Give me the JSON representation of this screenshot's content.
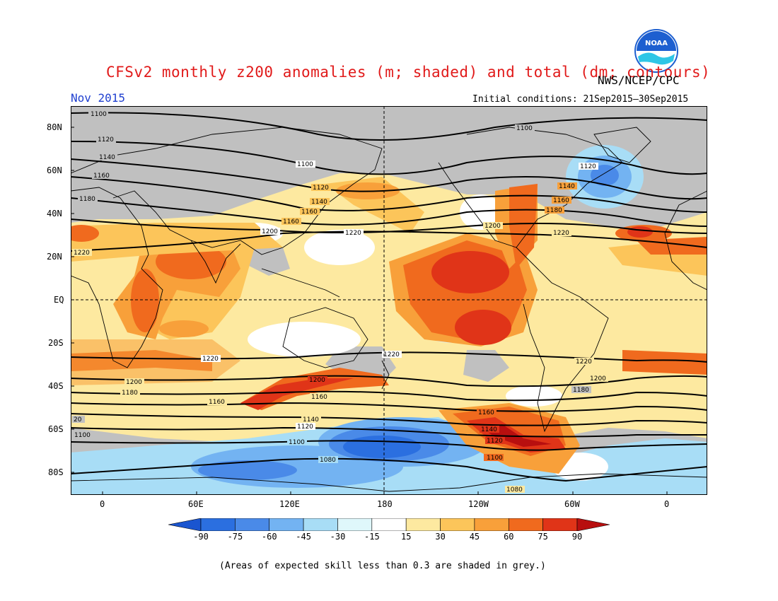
{
  "header": {
    "title": "CFSv2 monthly z200 anomalies (m; shaded) and total (dm; contours)",
    "org": "NWS/NCEP/CPC",
    "month": "Nov 2015",
    "initial_conditions": "Initial conditions: 21Sep2015–30Sep2015",
    "logo_text": "NOAA"
  },
  "map": {
    "lat_labels": [
      "80N",
      "60N",
      "40N",
      "20N",
      "EQ",
      "20S",
      "40S",
      "60S",
      "80S"
    ],
    "lon_labels": [
      "0",
      "60E",
      "120E",
      "180",
      "120W",
      "60W",
      "0"
    ],
    "contours": [
      {
        "value": 1080,
        "labels": [
          {
            "text": "1080"
          },
          {
            "text": "1080"
          }
        ]
      },
      {
        "value": 1100,
        "labels": [
          {
            "text": "1100"
          },
          {
            "text": "1100"
          },
          {
            "text": "1100"
          },
          {
            "text": "1100"
          },
          {
            "text": "1100"
          }
        ]
      },
      {
        "value": 1120,
        "labels": [
          {
            "text": "1120"
          },
          {
            "text": "1120"
          },
          {
            "text": "1120"
          },
          {
            "text": "1120"
          },
          {
            "text": "1120"
          }
        ]
      },
      {
        "value": 1140,
        "labels": [
          {
            "text": "1140"
          },
          {
            "text": "1140"
          },
          {
            "text": "1140"
          },
          {
            "text": "1140"
          }
        ]
      },
      {
        "value": 1160,
        "labels": [
          {
            "text": "1160"
          },
          {
            "text": "1160"
          },
          {
            "text": "1160"
          },
          {
            "text": "1160"
          },
          {
            "text": "1160"
          },
          {
            "text": "1160"
          },
          {
            "text": "1160"
          }
        ]
      },
      {
        "value": 1180,
        "labels": [
          {
            "text": "1180"
          },
          {
            "text": "1180"
          },
          {
            "text": "1180"
          },
          {
            "text": "1180"
          }
        ]
      },
      {
        "value": 1200,
        "labels": [
          {
            "text": "1200"
          },
          {
            "text": "1200"
          },
          {
            "text": "1200"
          },
          {
            "text": "1200"
          },
          {
            "text": "1200"
          }
        ]
      },
      {
        "value": 1220,
        "labels": [
          {
            "text": "1220"
          },
          {
            "text": "1220"
          },
          {
            "text": "1220"
          },
          {
            "text": "1220"
          },
          {
            "text": "1220"
          }
        ]
      },
      {
        "value": 20,
        "labels": [
          {
            "text": "20"
          }
        ]
      }
    ]
  },
  "colorbar": {
    "ticks": [
      "-90",
      "-75",
      "-60",
      "-45",
      "-30",
      "-15",
      "15",
      "30",
      "45",
      "60",
      "75",
      "90"
    ],
    "colors": [
      "#1a55d0",
      "#2b6fe0",
      "#4a8ae8",
      "#73b3f2",
      "#a8ddf6",
      "#dff7fb",
      "#ffffff",
      "#fde9a0",
      "#fcc55a",
      "#f8a03a",
      "#f06a1e",
      "#e03418",
      "#b80f0f"
    ]
  },
  "footnote": "(Areas of expected skill less than 0.3 are shaded in grey.)"
}
